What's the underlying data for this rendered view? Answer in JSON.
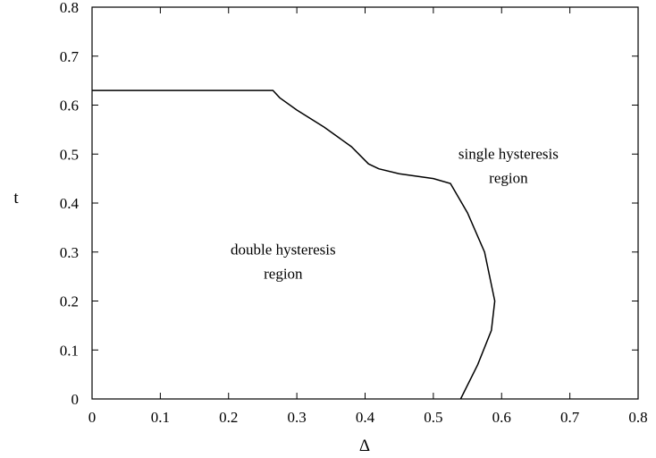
{
  "chart_data": {
    "type": "line",
    "title": "",
    "xlabel": "Δ",
    "ylabel": "t",
    "xlim": [
      0,
      0.8
    ],
    "ylim": [
      0,
      0.8
    ],
    "xticks": [
      "0",
      "0.1",
      "0.2",
      "0.3",
      "0.4",
      "0.5",
      "0.6",
      "0.7",
      "0.8"
    ],
    "yticks": [
      "0",
      "0.1",
      "0.2",
      "0.3",
      "0.4",
      "0.5",
      "0.6",
      "0.7",
      "0.8"
    ],
    "grid": false,
    "legend": "none",
    "line_color": "#000000",
    "series": [
      {
        "x": [
          0,
          0.265,
          0.275,
          0.3,
          0.34,
          0.38,
          0.405,
          0.42,
          0.45,
          0.5,
          0.525,
          0.55,
          0.575,
          0.59,
          0.585,
          0.565,
          0.54
        ],
        "y": [
          0.63,
          0.63,
          0.615,
          0.59,
          0.555,
          0.515,
          0.48,
          0.47,
          0.46,
          0.45,
          0.44,
          0.38,
          0.3,
          0.2,
          0.14,
          0.07,
          0.0
        ]
      }
    ],
    "annotations": [
      {
        "lines": [
          "double hysteresis",
          "region"
        ],
        "x": 0.28,
        "y": 0.295
      },
      {
        "lines": [
          "single hysteresis",
          "region"
        ],
        "x": 0.61,
        "y": 0.49
      }
    ]
  }
}
